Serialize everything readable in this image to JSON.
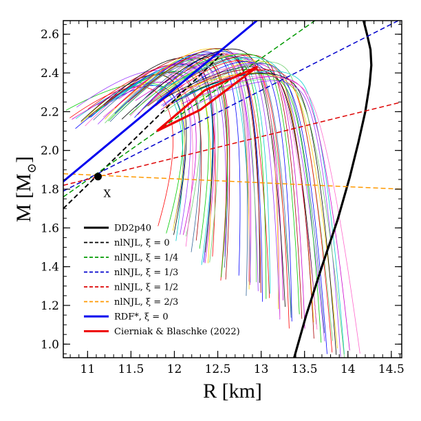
{
  "chart_data": {
    "type": "line",
    "title": "",
    "xlabel": "R [km]",
    "ylabel": "M [M",
    "ylabel_sub": "⊙",
    "ylabel_close": "]",
    "xlim": [
      10.72,
      14.62
    ],
    "ylim": [
      0.93,
      2.67
    ],
    "x_ticks": [
      11,
      11.5,
      12,
      12.5,
      13,
      13.5,
      14,
      14.5
    ],
    "x_tick_labels": [
      "11",
      "11.5",
      "12",
      "12.5",
      "13",
      "13.5",
      "14",
      "14.5"
    ],
    "y_ticks": [
      1.0,
      1.2,
      1.4,
      1.6,
      1.8,
      2.0,
      2.2,
      2.4,
      2.6
    ],
    "y_tick_labels": [
      "1.0",
      "1.2",
      "1.4",
      "1.6",
      "1.8",
      "2.0",
      "2.2",
      "2.4",
      "2.6"
    ],
    "series": [
      {
        "name": "DD2p40",
        "color": "#000000",
        "dash": "solid",
        "width": 3.2,
        "x": [
          13.38,
          13.52,
          13.7,
          13.88,
          14.02,
          14.12,
          14.2,
          14.25,
          14.27,
          14.26,
          14.22,
          14.18
        ],
        "y": [
          0.93,
          1.15,
          1.4,
          1.64,
          1.86,
          2.04,
          2.2,
          2.34,
          2.44,
          2.52,
          2.6,
          2.67
        ]
      },
      {
        "name": "nlNJL, ξ = 0",
        "color": "#000000",
        "dash": "dashed",
        "width": 2,
        "x": [
          10.72,
          12.55
        ],
        "y": [
          1.7,
          2.5
        ]
      },
      {
        "name": "nlNJL, ξ = 1/4",
        "color": "#009900",
        "dash": "dashed",
        "width": 1.5,
        "x": [
          10.72,
          13.62
        ],
        "y": [
          1.76,
          2.67
        ]
      },
      {
        "name": "nlNJL, ξ = 1/3",
        "color": "#0000cc",
        "dash": "dashed",
        "width": 1.5,
        "x": [
          10.72,
          14.58
        ],
        "y": [
          1.79,
          2.67
        ]
      },
      {
        "name": "nlNJL, ξ = 1/2",
        "color": "#dd0000",
        "dash": "dashed",
        "width": 1.5,
        "x": [
          10.72,
          14.62
        ],
        "y": [
          1.82,
          2.25
        ]
      },
      {
        "name": "nlNJL, ξ = 2/3",
        "color": "#ff9900",
        "dash": "dashed",
        "width": 1.5,
        "x": [
          10.72,
          14.62
        ],
        "y": [
          1.88,
          1.8
        ]
      },
      {
        "name": "RDF*, ξ = 0",
        "color": "#0000ee",
        "dash": "solid",
        "width": 3,
        "x": [
          10.72,
          12.95
        ],
        "y": [
          1.84,
          2.67
        ]
      },
      {
        "name": "Cierniak & Blaschke (2022)",
        "color": "#ee0000",
        "dash": "solid",
        "width": 3.2,
        "x": [
          11.8,
          12.35,
          12.95,
          12.3,
          11.8
        ],
        "y": [
          2.1,
          2.31,
          2.43,
          2.21,
          2.1
        ]
      }
    ],
    "annotations": [
      {
        "text": "X",
        "x": 11.12,
        "y": 1.76
      },
      {
        "text": "",
        "point": [
          11.12,
          1.865
        ],
        "marker": "filled-circle"
      }
    ],
    "legend": {
      "position": "bottom-left"
    },
    "grid": false,
    "background_curves": {
      "description_none": "",
      "palette": [
        "#ff0000",
        "#00cc00",
        "#0000ff",
        "#00cccc",
        "#cc00cc",
        "#ffcc00",
        "#000000",
        "#9933ff",
        "#66cc66",
        "#ff66cc",
        "#336699",
        "#aa0000"
      ]
    }
  }
}
